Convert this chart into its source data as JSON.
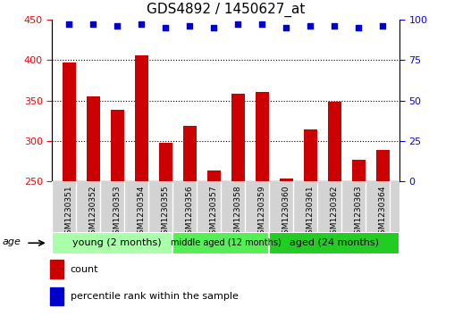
{
  "title": "GDS4892 / 1450627_at",
  "samples": [
    "GSM1230351",
    "GSM1230352",
    "GSM1230353",
    "GSM1230354",
    "GSM1230355",
    "GSM1230356",
    "GSM1230357",
    "GSM1230358",
    "GSM1230359",
    "GSM1230360",
    "GSM1230361",
    "GSM1230362",
    "GSM1230363",
    "GSM1230364"
  ],
  "counts": [
    397,
    355,
    338,
    406,
    298,
    319,
    263,
    358,
    360,
    254,
    314,
    348,
    277,
    289
  ],
  "percentiles": [
    97,
    97,
    96,
    97,
    95,
    96,
    95,
    97,
    97,
    95,
    96,
    96,
    95,
    96
  ],
  "ylim_left": [
    250,
    450
  ],
  "ylim_right": [
    0,
    100
  ],
  "yticks_left": [
    250,
    300,
    350,
    400,
    450
  ],
  "yticks_right": [
    0,
    25,
    50,
    75,
    100
  ],
  "bar_color": "#cc0000",
  "dot_color": "#0000cc",
  "plot_bg": "#ffffff",
  "tick_bg": "#d3d3d3",
  "groups": [
    {
      "label": "young (2 months)",
      "start": 0,
      "end": 5,
      "color": "#aaffaa"
    },
    {
      "label": "middle aged (12 months)",
      "start": 5,
      "end": 9,
      "color": "#55ee55"
    },
    {
      "label": "aged (24 months)",
      "start": 9,
      "end": 14,
      "color": "#22cc22"
    }
  ],
  "group_label": "age",
  "legend_count_label": "count",
  "legend_pct_label": "percentile rank within the sample",
  "bar_width": 0.55,
  "dot_marker": "s",
  "dot_size": 25,
  "title_fontsize": 11,
  "tick_fontsize": 6.5,
  "axis_fontsize": 8,
  "legend_fontsize": 8
}
